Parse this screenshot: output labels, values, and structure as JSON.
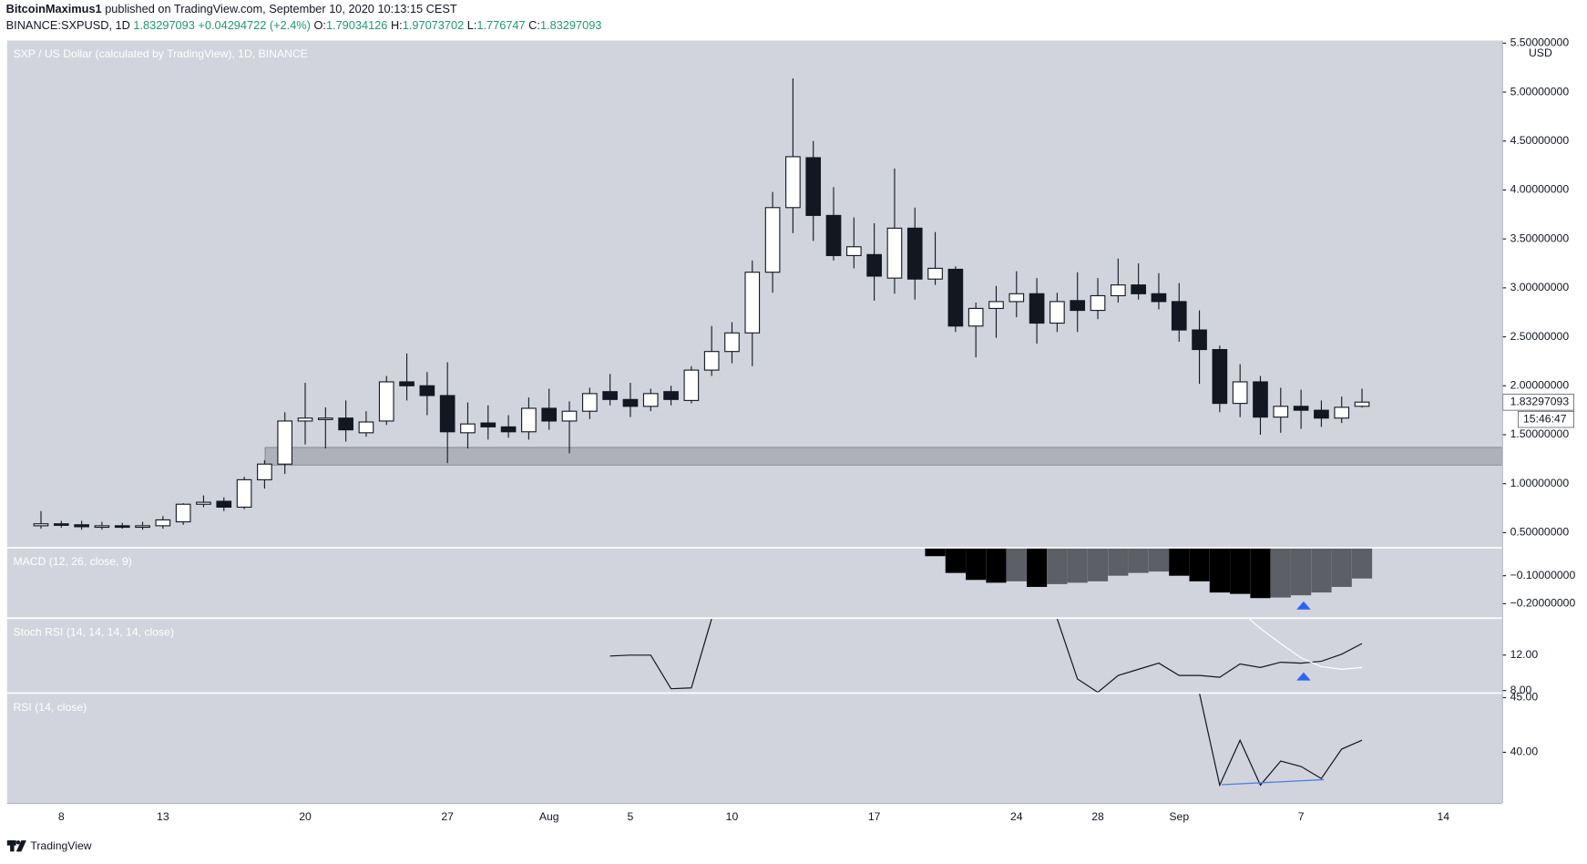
{
  "header": {
    "author": "BitcoinMaximus1",
    "published": "published on TradingView.com, September 10, 2020 10:13:15 CEST",
    "symbol": "BINANCE:SXPUSD, 1D",
    "change": "+0.04294722 (+2.4%)",
    "open_label": "O:",
    "high_label": "H:",
    "low_label": "L:",
    "close_label": "C:"
  },
  "footer": {
    "brand": "TradingView"
  },
  "chart_data": [
    {
      "type": "candlestick",
      "title": "SXP / US Dollar (calculated by TradingView), 1D, BINANCE",
      "unit": "USD",
      "countdown": "15:46:47",
      "categories": [
        null,
        "8",
        null,
        null,
        null,
        null,
        "13",
        null,
        null,
        null,
        null,
        null,
        null,
        "20",
        null,
        null,
        null,
        null,
        null,
        null,
        "27",
        null,
        null,
        null,
        null,
        "Aug",
        null,
        null,
        null,
        "5",
        null,
        null,
        null,
        null,
        "10",
        null,
        null,
        null,
        null,
        null,
        null,
        "17",
        null,
        null,
        null,
        null,
        null,
        null,
        "24",
        null,
        null,
        null,
        "28",
        null,
        null,
        null,
        "Sep",
        null,
        null,
        null,
        null,
        null,
        "7",
        null,
        null,
        null,
        null,
        null,
        null,
        "14"
      ],
      "open": [
        0.57,
        0.59,
        0.58,
        0.56,
        0.57,
        0.56,
        0.57,
        0.61,
        0.79,
        0.82,
        0.76,
        1.04,
        1.2,
        1.64,
        1.66,
        1.67,
        1.52,
        1.64,
        2.04,
        2.0,
        1.9,
        1.52,
        1.62,
        1.58,
        1.53,
        1.77,
        1.64,
        1.74,
        1.94,
        1.86,
        1.79,
        1.94,
        1.85,
        2.16,
        2.35,
        2.54,
        3.16,
        3.82,
        4.33,
        3.74,
        3.33,
        3.34,
        3.1,
        3.61,
        3.09,
        3.19,
        2.61,
        2.79,
        2.86,
        2.94,
        2.64,
        2.87,
        2.77,
        2.92,
        3.03,
        2.94,
        2.86,
        2.57,
        2.37,
        1.82,
        2.04,
        1.68,
        1.79,
        1.75,
        1.67,
        1.79034126,
        null,
        null,
        null,
        null
      ],
      "high": [
        0.72,
        0.62,
        0.62,
        0.61,
        0.6,
        0.61,
        0.67,
        0.8,
        0.88,
        0.86,
        1.07,
        1.24,
        1.73,
        2.03,
        1.78,
        1.85,
        1.74,
        2.1,
        2.33,
        2.14,
        2.24,
        1.83,
        1.8,
        1.7,
        1.88,
        1.97,
        1.84,
        1.98,
        2.12,
        2.03,
        1.97,
        2.0,
        2.2,
        2.61,
        2.65,
        3.28,
        3.98,
        5.14,
        4.5,
        4.03,
        3.72,
        3.66,
        4.22,
        3.82,
        3.57,
        3.22,
        2.85,
        3.02,
        3.17,
        3.1,
        2.95,
        3.16,
        3.1,
        3.3,
        3.25,
        3.15,
        3.05,
        2.77,
        2.41,
        2.22,
        2.1,
        1.98,
        1.96,
        1.85,
        1.89,
        1.97073702,
        null,
        null,
        null,
        null
      ],
      "low": [
        0.54,
        0.55,
        0.53,
        0.53,
        0.54,
        0.53,
        0.54,
        0.58,
        0.76,
        0.72,
        0.74,
        0.95,
        1.1,
        1.4,
        1.36,
        1.43,
        1.48,
        1.6,
        1.85,
        1.7,
        1.21,
        1.36,
        1.45,
        1.47,
        1.45,
        1.55,
        1.31,
        1.66,
        1.8,
        1.68,
        1.74,
        1.8,
        1.82,
        2.1,
        2.23,
        2.2,
        2.95,
        3.56,
        3.48,
        3.28,
        3.2,
        2.87,
        2.94,
        2.88,
        3.03,
        2.55,
        2.29,
        2.49,
        2.7,
        2.43,
        2.55,
        2.55,
        2.68,
        2.85,
        2.88,
        2.78,
        2.45,
        2.02,
        1.73,
        1.68,
        1.5,
        1.52,
        1.56,
        1.58,
        1.62,
        1.776747,
        null,
        null,
        null,
        null
      ],
      "close": [
        0.59,
        0.58,
        0.56,
        0.57,
        0.56,
        0.57,
        0.63,
        0.79,
        0.81,
        0.76,
        1.04,
        1.2,
        1.64,
        1.67,
        1.67,
        1.55,
        1.63,
        2.04,
        2.0,
        1.9,
        1.53,
        1.61,
        1.58,
        1.53,
        1.77,
        1.64,
        1.74,
        1.92,
        1.86,
        1.79,
        1.92,
        1.86,
        2.16,
        2.35,
        2.54,
        3.16,
        3.82,
        4.34,
        3.74,
        3.33,
        3.42,
        3.12,
        3.61,
        3.09,
        3.2,
        2.61,
        2.79,
        2.86,
        2.94,
        2.64,
        2.86,
        2.77,
        2.92,
        3.03,
        2.94,
        2.86,
        2.57,
        2.37,
        1.82,
        2.04,
        1.68,
        1.79,
        1.75,
        1.67,
        1.78,
        1.83297093,
        null,
        null,
        null,
        null
      ],
      "up_color": "#ffffff",
      "down_color": "#131722",
      "zone": [
        1.19,
        1.37
      ],
      "zone_color": "#a3a6ae",
      "ylim": [
        0.345,
        5.527
      ],
      "yticks": [
        {
          "value": 0.5,
          "label": "0.50000000"
        },
        {
          "value": 1,
          "label": "1.00000000"
        },
        {
          "value": 1.5,
          "label": "1.50000000"
        },
        {
          "value": 2,
          "label": "2.00000000"
        },
        {
          "value": 2.5,
          "label": "2.50000000"
        },
        {
          "value": 3,
          "label": "3.00000000"
        },
        {
          "value": 3.5,
          "label": "3.50000000"
        },
        {
          "value": 4,
          "label": "4.00000000"
        },
        {
          "value": 4.5,
          "label": "4.50000000"
        },
        {
          "value": 5,
          "label": "5.00000000"
        },
        {
          "value": 5.5,
          "label": "5.50000000"
        }
      ]
    },
    {
      "type": "bar",
      "title": "MACD (12, 26, close, 9)",
      "rising_color": "#5d5f66",
      "falling_color": "#000000",
      "values": [
        null,
        null,
        null,
        null,
        null,
        null,
        null,
        null,
        null,
        null,
        null,
        null,
        null,
        null,
        null,
        null,
        null,
        null,
        null,
        null,
        null,
        null,
        null,
        null,
        null,
        null,
        null,
        null,
        null,
        null,
        null,
        null,
        null,
        null,
        null,
        null,
        null,
        null,
        null,
        null,
        null,
        null,
        null,
        null,
        -0.03,
        -0.09,
        -0.115,
        -0.125,
        -0.12,
        -0.14,
        -0.13,
        -0.125,
        -0.12,
        -0.1,
        -0.09,
        -0.085,
        -0.1,
        -0.12,
        -0.16,
        -0.165,
        -0.18,
        -0.178,
        -0.17,
        -0.16,
        -0.14,
        -0.11,
        null,
        null,
        null,
        null
      ],
      "ylim": [
        -0.25,
        0
      ],
      "yticks": [
        {
          "value": -0.1,
          "label": "−0.10000000"
        },
        {
          "value": -0.2,
          "label": "−0.20000000"
        }
      ]
    },
    {
      "type": "line",
      "title": "Stoch RSI (14, 14, 14, 14, close)",
      "series": [
        {
          "color": "#131722",
          "values": [
            null,
            null,
            null,
            null,
            null,
            null,
            null,
            null,
            null,
            null,
            null,
            null,
            null,
            null,
            null,
            null,
            null,
            null,
            null,
            null,
            null,
            null,
            null,
            null,
            null,
            null,
            null,
            null,
            11.9,
            12,
            12,
            8.2,
            8.3,
            16.1,
            null,
            null,
            null,
            null,
            null,
            null,
            null,
            null,
            null,
            null,
            null,
            null,
            null,
            null,
            null,
            null,
            16.1,
            9.3,
            7.8,
            9.7,
            10.4,
            11.1,
            9.7,
            9.7,
            9.5,
            11,
            10.6,
            11.2,
            11.1,
            11.3,
            12.1,
            13.3,
            null,
            null,
            null,
            null
          ]
        },
        {
          "color": "#ffffff",
          "values": [
            null,
            null,
            null,
            null,
            null,
            null,
            null,
            null,
            null,
            null,
            null,
            null,
            null,
            null,
            null,
            null,
            null,
            null,
            null,
            null,
            null,
            null,
            null,
            null,
            null,
            null,
            null,
            null,
            null,
            null,
            null,
            null,
            null,
            null,
            null,
            null,
            null,
            null,
            null,
            null,
            null,
            null,
            null,
            null,
            null,
            null,
            null,
            null,
            null,
            null,
            null,
            null,
            null,
            null,
            null,
            null,
            null,
            null,
            null,
            17,
            15,
            13.3,
            11.7,
            10.7,
            10.4,
            10.6,
            null,
            null,
            null,
            null
          ]
        }
      ],
      "ylim": [
        7.77,
        16.11
      ],
      "yticks": [
        {
          "value": 12,
          "label": "12.00"
        },
        {
          "value": 8,
          "label": "8.00"
        }
      ]
    },
    {
      "type": "line",
      "title": "RSI (14, close)",
      "series": [
        {
          "color": "#131722",
          "values": [
            null,
            null,
            null,
            null,
            null,
            null,
            null,
            null,
            null,
            null,
            null,
            null,
            null,
            null,
            null,
            null,
            null,
            null,
            null,
            null,
            null,
            null,
            null,
            null,
            null,
            null,
            null,
            null,
            null,
            null,
            null,
            null,
            null,
            null,
            null,
            null,
            null,
            null,
            null,
            null,
            null,
            null,
            null,
            null,
            null,
            null,
            null,
            null,
            null,
            null,
            null,
            null,
            null,
            null,
            null,
            null,
            null,
            45.4,
            37,
            41.1,
            37,
            39.2,
            38.7,
            37.6,
            40.3,
            41.1,
            null,
            null,
            null,
            null
          ]
        }
      ],
      "ylim": [
        35.37,
        45.37
      ],
      "yticks": [
        {
          "value": 45,
          "label": "45.00"
        },
        {
          "value": 40,
          "label": "40.00"
        }
      ]
    }
  ]
}
